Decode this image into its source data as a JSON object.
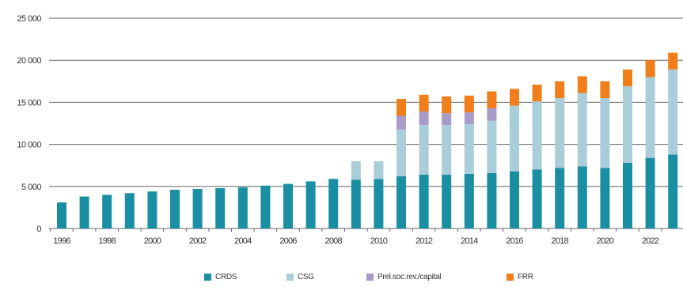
{
  "chart_data": {
    "type": "bar",
    "stacked": true,
    "title": "",
    "xlabel": "",
    "ylabel": "",
    "ylim": [
      0,
      25000
    ],
    "yticks": [
      "0",
      "5 000",
      "10 000",
      "15 000",
      "20 000",
      "25 000"
    ],
    "grid": true,
    "legend_position": "bottom",
    "categories": [
      "1996",
      "1997",
      "1998",
      "1999",
      "2000",
      "2001",
      "2002",
      "2003",
      "2004",
      "2005",
      "2006",
      "2007",
      "2008",
      "2009",
      "2010",
      "2011",
      "2012",
      "2013",
      "2014",
      "2015",
      "2016",
      "2017",
      "2018",
      "2019",
      "2020",
      "2021",
      "2022",
      "2023"
    ],
    "xtick_labels": [
      "1996",
      "1998",
      "2000",
      "2002",
      "2004",
      "2006",
      "2008",
      "2010",
      "2012",
      "2014",
      "2016",
      "2018",
      "2020",
      "2022"
    ],
    "series": [
      {
        "name": "CRDS",
        "color": "#1a8fa3",
        "values": [
          3100,
          3800,
          4000,
          4200,
          4400,
          4600,
          4700,
          4800,
          4900,
          5100,
          5300,
          5600,
          5900,
          5800,
          5900,
          6200,
          6400,
          6400,
          6500,
          6600,
          6800,
          7000,
          7200,
          7400,
          7200,
          7800,
          8400,
          8800
        ]
      },
      {
        "name": "CSG",
        "color": "#a9cdd9",
        "values": [
          0,
          0,
          0,
          0,
          0,
          0,
          0,
          0,
          0,
          0,
          0,
          0,
          0,
          2200,
          2100,
          5600,
          5900,
          5900,
          5900,
          6200,
          7800,
          8100,
          8300,
          8700,
          8300,
          9100,
          9600,
          10100
        ]
      },
      {
        "name": "Prel.soc.rev./capital",
        "color": "#a99bc7",
        "values": [
          0,
          0,
          0,
          0,
          0,
          0,
          0,
          0,
          0,
          0,
          0,
          0,
          0,
          0,
          0,
          1600,
          1600,
          1400,
          1400,
          1500,
          0,
          0,
          0,
          0,
          0,
          0,
          0,
          0
        ]
      },
      {
        "name": "FRR",
        "color": "#f07e1a",
        "values": [
          0,
          0,
          0,
          0,
          0,
          0,
          0,
          0,
          0,
          0,
          0,
          0,
          0,
          0,
          0,
          2000,
          2000,
          2000,
          2000,
          2000,
          2000,
          2000,
          2000,
          2000,
          2000,
          2000,
          2000,
          2000
        ]
      }
    ]
  }
}
